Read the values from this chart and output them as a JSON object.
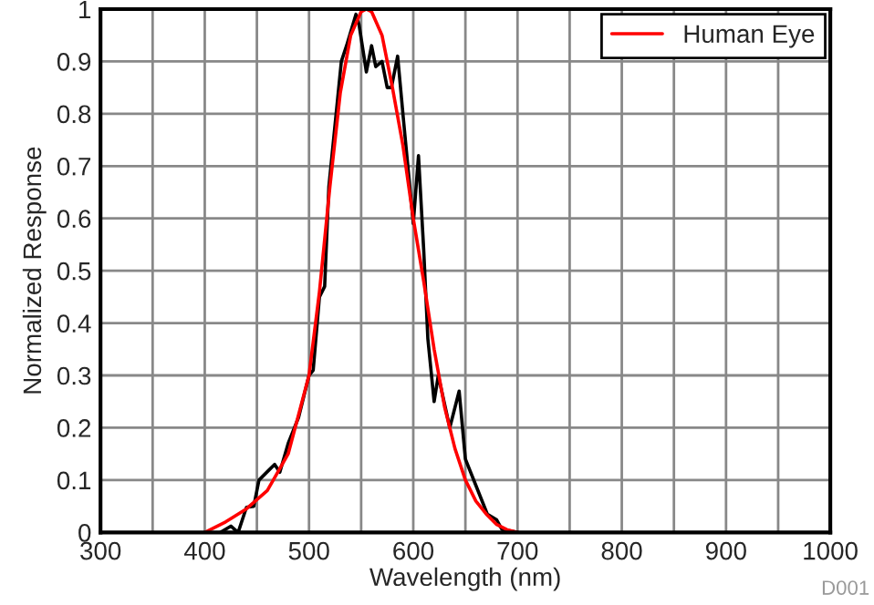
{
  "chart_data": {
    "type": "line",
    "xlabel": "Wavelength (nm)",
    "ylabel": "Normalized Response",
    "xlim": [
      300,
      1000
    ],
    "ylim": [
      0,
      1
    ],
    "xticks": [
      300,
      {
        "value": 350,
        "label": null
      },
      400,
      {
        "value": 450,
        "label": null
      },
      500,
      {
        "value": 550,
        "label": null
      },
      600,
      {
        "value": 650,
        "label": null
      },
      700,
      {
        "value": 750,
        "label": null
      },
      800,
      {
        "value": 850,
        "label": null
      },
      900,
      {
        "value": 950,
        "label": null
      },
      1000
    ],
    "yticks": [
      0,
      0.1,
      0.2,
      0.3,
      0.4,
      0.5,
      0.6,
      0.7,
      0.8,
      0.9,
      1
    ],
    "grid": true,
    "legend": "top right",
    "line_style": "solid",
    "marker": "none",
    "annotations": [
      "D001"
    ],
    "series": [
      {
        "color": "#000000",
        "x": [
          415,
          425,
          432,
          440,
          447,
          452,
          462,
          467,
          472,
          480,
          490,
          500,
          504,
          510,
          515,
          519,
          525,
          531,
          536,
          545,
          548,
          555,
          560,
          564,
          570,
          575,
          579,
          585,
          591,
          600,
          605,
          610,
          614,
          620,
          624,
          635,
          644,
          650,
          659,
          671,
          680,
          685,
          700
        ],
        "values": [
          0,
          0.012,
          0,
          0.048,
          0.05,
          0.1,
          0.12,
          0.13,
          0.115,
          0.17,
          0.22,
          0.3,
          0.31,
          0.45,
          0.47,
          0.66,
          0.78,
          0.9,
          0.93,
          0.99,
          0.97,
          0.88,
          0.93,
          0.89,
          0.9,
          0.85,
          0.85,
          0.91,
          0.78,
          0.59,
          0.72,
          0.54,
          0.37,
          0.25,
          0.3,
          0.2,
          0.27,
          0.14,
          0.095,
          0.035,
          0.024,
          0.006,
          0
        ]
      },
      {
        "name": "Human Eye",
        "color": "#ff0000",
        "x": [
          400,
          420,
          440,
          460,
          480,
          500,
          510,
          520,
          530,
          540,
          550,
          555,
          560,
          570,
          580,
          590,
          600,
          610,
          620,
          630,
          640,
          650,
          660,
          670,
          680,
          690,
          700
        ],
        "values": [
          0,
          0.02,
          0.045,
          0.08,
          0.15,
          0.3,
          0.46,
          0.66,
          0.84,
          0.95,
          0.995,
          1,
          0.995,
          0.95,
          0.85,
          0.74,
          0.6,
          0.48,
          0.35,
          0.24,
          0.16,
          0.1,
          0.06,
          0.035,
          0.015,
          0.005,
          0
        ]
      }
    ]
  }
}
